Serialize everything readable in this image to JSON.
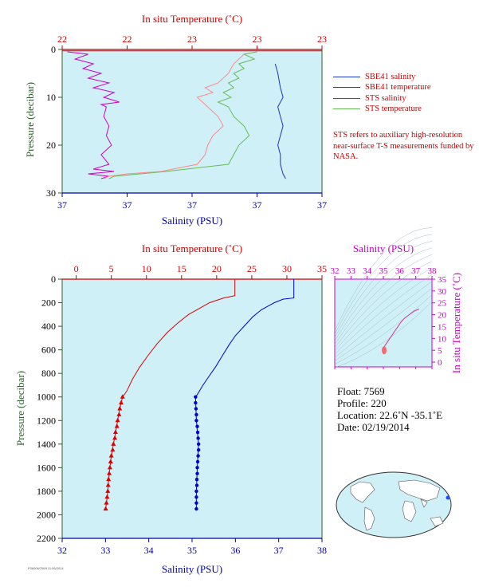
{
  "chart_data": [
    {
      "type": "line",
      "panel": "top-profile",
      "top_axis_label": "In situ Temperature (˚C)",
      "top_ticks": [
        "22",
        "22",
        "23",
        "23",
        "23"
      ],
      "bottom_axis_label": "Salinity (PSU)",
      "bottom_ticks": [
        "37",
        "37",
        "37",
        "37",
        "37"
      ],
      "ylabel": "Pressure (decibar)",
      "y_ticks": [
        0,
        10,
        20,
        30
      ],
      "ylim": [
        0,
        30
      ],
      "xlim_norm": [
        0,
        1
      ],
      "legend_placement": "right",
      "series": [
        {
          "name": "SBE41 salinity",
          "color": "#1a33cc",
          "points": [
            [
              0.82,
              3
            ],
            [
              0.83,
              5
            ],
            [
              0.84,
              8
            ],
            [
              0.85,
              10
            ],
            [
              0.83,
              12
            ],
            [
              0.84,
              14
            ],
            [
              0.85,
              16
            ],
            [
              0.84,
              18
            ],
            [
              0.83,
              20
            ],
            [
              0.84,
              22
            ],
            [
              0.84,
              24
            ],
            [
              0.85,
              26
            ],
            [
              0.86,
              27
            ]
          ]
        },
        {
          "name": "SBE41 temperature",
          "color": "#dd0000",
          "points": [
            [
              0.0,
              0.3
            ],
            [
              1.0,
              0.3
            ]
          ]
        },
        {
          "name": "STS salinity",
          "color": "#cc00cc",
          "points": [
            [
              0.02,
              0.5
            ],
            [
              0.1,
              1
            ],
            [
              0.05,
              2
            ],
            [
              0.12,
              3
            ],
            [
              0.08,
              4
            ],
            [
              0.15,
              5
            ],
            [
              0.1,
              6
            ],
            [
              0.18,
              7
            ],
            [
              0.12,
              8
            ],
            [
              0.2,
              9
            ],
            [
              0.16,
              10
            ],
            [
              0.22,
              11
            ],
            [
              0.15,
              11.5
            ],
            [
              0.17,
              12
            ],
            [
              0.16,
              14
            ],
            [
              0.18,
              16
            ],
            [
              0.17,
              18
            ],
            [
              0.19,
              20
            ],
            [
              0.15,
              22
            ],
            [
              0.18,
              24
            ],
            [
              0.12,
              25
            ],
            [
              0.2,
              25.5
            ],
            [
              0.1,
              26
            ],
            [
              0.18,
              26.5
            ],
            [
              0.15,
              27
            ]
          ]
        },
        {
          "name": "STS temperature",
          "color": "#66bb55",
          "points": [
            [
              0.75,
              0.5
            ],
            [
              0.7,
              1
            ],
            [
              0.74,
              2
            ],
            [
              0.68,
              3
            ],
            [
              0.7,
              4
            ],
            [
              0.66,
              5
            ],
            [
              0.68,
              6
            ],
            [
              0.64,
              7
            ],
            [
              0.66,
              8
            ],
            [
              0.62,
              9
            ],
            [
              0.65,
              10
            ],
            [
              0.6,
              11
            ],
            [
              0.64,
              12
            ],
            [
              0.66,
              14
            ],
            [
              0.7,
              16
            ],
            [
              0.72,
              18
            ],
            [
              0.68,
              20
            ],
            [
              0.66,
              22
            ],
            [
              0.64,
              24
            ],
            [
              0.4,
              25.5
            ],
            [
              0.3,
              26
            ],
            [
              0.2,
              26.5
            ],
            [
              0.18,
              27
            ]
          ]
        },
        {
          "name": "",
          "color": "#ff8888",
          "points": [
            [
              0.7,
              1
            ],
            [
              0.66,
              3
            ],
            [
              0.64,
              5
            ],
            [
              0.6,
              7
            ],
            [
              0.55,
              8
            ],
            [
              0.58,
              9
            ],
            [
              0.52,
              10
            ],
            [
              0.56,
              12
            ],
            [
              0.6,
              14
            ],
            [
              0.62,
              16
            ],
            [
              0.58,
              18
            ],
            [
              0.56,
              20
            ],
            [
              0.55,
              22
            ],
            [
              0.52,
              24
            ],
            [
              0.38,
              25.5
            ],
            [
              0.25,
              26
            ],
            [
              0.18,
              26.5
            ],
            [
              0.16,
              27
            ]
          ]
        }
      ]
    },
    {
      "type": "line",
      "panel": "main-profile",
      "top_axis_label": "In situ Temperature (˚C)",
      "bottom_axis_label": "Salinity (PSU)",
      "ylabel": "Pressure (decibar)",
      "temp_xlim": [
        -2,
        35
      ],
      "temp_ticks": [
        0,
        5,
        10,
        15,
        20,
        25,
        30,
        35
      ],
      "sal_xlim": [
        32,
        38
      ],
      "sal_ticks": [
        32,
        33,
        34,
        35,
        36,
        37,
        38
      ],
      "ylim": [
        0,
        2200
      ],
      "y_ticks": [
        0,
        200,
        400,
        600,
        800,
        1000,
        1200,
        1400,
        1600,
        1800,
        2000,
        2200
      ],
      "series": [
        {
          "name": "temperature",
          "color": "#dd0000",
          "axis": "temperature",
          "points": [
            [
              22.6,
              0
            ],
            [
              22.6,
              140
            ],
            [
              21,
              160
            ],
            [
              19,
              200
            ],
            [
              17.5,
              250
            ],
            [
              16,
              300
            ],
            [
              14.5,
              370
            ],
            [
              13,
              450
            ],
            [
              11.5,
              550
            ],
            [
              10.2,
              650
            ],
            [
              9,
              750
            ],
            [
              8,
              850
            ],
            [
              7.2,
              950
            ],
            [
              6.6,
              1000
            ],
            [
              6.2,
              1100
            ],
            [
              5.9,
              1200
            ],
            [
              5.6,
              1300
            ],
            [
              5.3,
              1400
            ],
            [
              5.0,
              1500
            ],
            [
              4.8,
              1600
            ],
            [
              4.6,
              1700
            ],
            [
              4.5,
              1800
            ],
            [
              4.3,
              1900
            ],
            [
              4.2,
              1950
            ]
          ],
          "markers": [
            [
              6.6,
              1000
            ],
            [
              6.4,
              1050
            ],
            [
              6.2,
              1100
            ],
            [
              6.1,
              1150
            ],
            [
              5.9,
              1200
            ],
            [
              5.8,
              1250
            ],
            [
              5.6,
              1300
            ],
            [
              5.5,
              1350
            ],
            [
              5.3,
              1400
            ],
            [
              5.2,
              1450
            ],
            [
              5.0,
              1500
            ],
            [
              4.9,
              1550
            ],
            [
              4.8,
              1600
            ],
            [
              4.7,
              1650
            ],
            [
              4.6,
              1700
            ],
            [
              4.55,
              1750
            ],
            [
              4.5,
              1800
            ],
            [
              4.4,
              1850
            ],
            [
              4.3,
              1900
            ],
            [
              4.2,
              1950
            ]
          ]
        },
        {
          "name": "salinity",
          "color": "#0000cc",
          "axis": "salinity",
          "points": [
            [
              37.35,
              0
            ],
            [
              37.35,
              160
            ],
            [
              37.1,
              170
            ],
            [
              36.9,
              200
            ],
            [
              36.6,
              260
            ],
            [
              36.4,
              320
            ],
            [
              36.2,
              400
            ],
            [
              36.0,
              480
            ],
            [
              35.85,
              560
            ],
            [
              35.7,
              650
            ],
            [
              35.55,
              740
            ],
            [
              35.4,
              820
            ],
            [
              35.25,
              900
            ],
            [
              35.12,
              980
            ],
            [
              35.08,
              1000
            ],
            [
              35.1,
              1200
            ],
            [
              35.15,
              1400
            ],
            [
              35.12,
              1600
            ],
            [
              35.1,
              1800
            ],
            [
              35.1,
              1950
            ]
          ],
          "markers": [
            [
              35.08,
              1000
            ],
            [
              35.08,
              1050
            ],
            [
              35.09,
              1100
            ],
            [
              35.1,
              1150
            ],
            [
              35.1,
              1200
            ],
            [
              35.12,
              1250
            ],
            [
              35.13,
              1300
            ],
            [
              35.14,
              1350
            ],
            [
              35.15,
              1400
            ],
            [
              35.15,
              1450
            ],
            [
              35.14,
              1500
            ],
            [
              35.13,
              1550
            ],
            [
              35.12,
              1600
            ],
            [
              35.12,
              1650
            ],
            [
              35.11,
              1700
            ],
            [
              35.11,
              1750
            ],
            [
              35.1,
              1800
            ],
            [
              35.1,
              1850
            ],
            [
              35.1,
              1900
            ],
            [
              35.1,
              1950
            ]
          ]
        }
      ]
    },
    {
      "type": "scatter",
      "panel": "ts-diagram",
      "top_axis_label": "Salinity (PSU)",
      "sal_ticks": [
        32,
        33,
        34,
        35,
        36,
        37,
        38
      ],
      "sal_xlim": [
        32,
        38
      ],
      "right_axis_label": "In situ Temperature (˚C)",
      "temp_ticks": [
        0,
        5,
        10,
        15,
        20,
        25,
        30,
        35
      ],
      "temp_ylim": [
        -2,
        35
      ],
      "series": [
        {
          "name": "ts",
          "color": "#cc3399",
          "points": [
            [
              35.0,
              4.3
            ],
            [
              35.0,
              5
            ],
            [
              35.05,
              6
            ],
            [
              35.1,
              7
            ],
            [
              35.2,
              8
            ],
            [
              35.3,
              9
            ],
            [
              35.4,
              10
            ],
            [
              35.55,
              11.5
            ],
            [
              35.7,
              13
            ],
            [
              35.9,
              15
            ],
            [
              36.1,
              17
            ],
            [
              36.3,
              18.5
            ],
            [
              36.6,
              20
            ],
            [
              36.9,
              21.5
            ],
            [
              37.2,
              22.4
            ]
          ],
          "blob": [
            35.05,
            5
          ]
        }
      ]
    }
  ],
  "legend": [
    {
      "label": "SBE41 salinity",
      "color": "#1a33cc"
    },
    {
      "label": "SBE41 temperature",
      "color": "#dd0000"
    },
    {
      "label": "STS salinity",
      "color": "#cc00cc"
    },
    {
      "label": "STS temperature",
      "color": "#66bb55"
    }
  ],
  "note": "STS refers to auxiliary high-resolution near-surface T-S measurements funded by NASA.",
  "info": {
    "float": "Float:  7569",
    "profile": "Profile:  220",
    "location": "Location:  22.6˚N  -35.1˚E",
    "date": "Date:  02/19/2014"
  },
  "map": {
    "marker_color": "#1e4cff",
    "marker_lat": 22.6,
    "marker_lon": -35.1
  },
  "footer": "P36006/7569 11:06/2014",
  "colors": {
    "plot_bg": "#d0f0f8",
    "red_axis": "#cc0000",
    "blue_axis": "#0000aa",
    "green_label": "#2e5e2e",
    "magenta_axis": "#cc00cc"
  }
}
